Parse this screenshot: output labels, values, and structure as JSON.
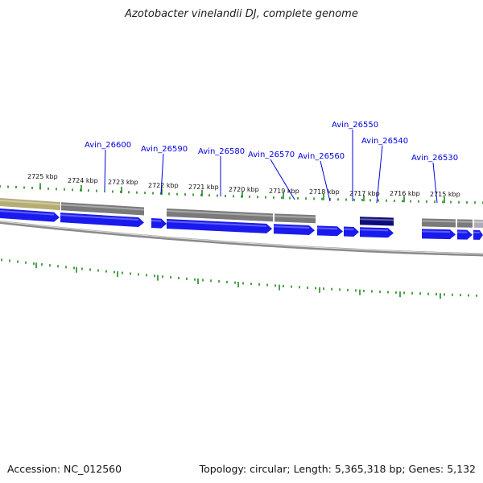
{
  "title": "Azotobacter vinelandii DJ, complete genome",
  "footer": {
    "accession": "Accession: NC_012560",
    "topology": "Topology: circular; Length: 5,365,318 bp; Genes: 5,132"
  },
  "colors": {
    "cds_blue": "#1a1aee",
    "cds_dark": "#0b0b7a",
    "gene_grey": "#7a7a7a",
    "gene_tan": "#b5ad74",
    "tick_green": "#228822",
    "label_blue": "#0000dd",
    "backbone": "#8a8a8a"
  },
  "scale_labels": [
    "2725 kbp",
    "2724 kbp",
    "2723 kbp",
    "2722 kbp",
    "2721 kbp",
    "2720 kbp",
    "2719 kbp",
    "2718 kbp",
    "2717 kbp",
    "2716 kbp",
    "2715 kbp"
  ],
  "gene_labels": [
    "Avin_26600",
    "Avin_26590",
    "Avin_26580",
    "Avin_26570",
    "Avin_26560",
    "Avin_26550",
    "Avin_26540",
    "Avin_26530"
  ]
}
